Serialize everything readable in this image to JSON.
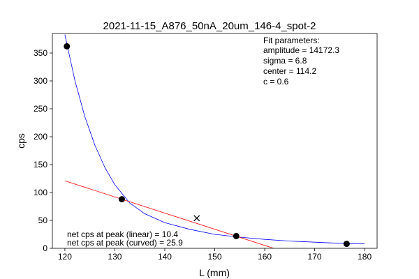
{
  "chart_data": {
    "type": "scatter",
    "title": "2021-11-15_A876_50nA_20um_146-4_spot-2",
    "xlabel": "L (mm)",
    "ylabel": "cps",
    "xlim": [
      117.5,
      182.5
    ],
    "ylim": [
      0,
      385
    ],
    "xticks": [
      120,
      130,
      140,
      150,
      160,
      170,
      180
    ],
    "yticks": [
      0,
      50,
      100,
      150,
      200,
      250,
      300,
      350
    ],
    "grid": false,
    "points": [
      {
        "x": 120.4,
        "y": 362
      },
      {
        "x": 131.4,
        "y": 88
      },
      {
        "x": 154.3,
        "y": 22
      },
      {
        "x": 176.4,
        "y": 8
      }
    ],
    "peak_marker": {
      "x": 146.4,
      "y": 54
    },
    "linear_fit": {
      "x": [
        120.0,
        161.8
      ],
      "y": [
        121,
        0
      ]
    },
    "curved_fit": {
      "x": [
        120.0,
        122.0,
        124.0,
        126.0,
        128.0,
        130.0,
        133.0,
        136.0,
        140.0,
        145.0,
        150.0,
        155.0,
        160.0,
        165.0,
        170.0,
        175.0,
        180.0
      ],
      "y": [
        383,
        301,
        236,
        185,
        145,
        114,
        81,
        62,
        46,
        34,
        25,
        20,
        16,
        13,
        11,
        9,
        8
      ]
    },
    "colors": {
      "points": "#000000",
      "linear_fit": "#ff0000",
      "curved_fit": "#0000ff"
    },
    "fit_parameters": {
      "heading": "Fit parameters:",
      "lines": [
        "amplitude = 14172.3",
        "sigma = 6.8",
        "center = 114.2",
        "c = 0.6"
      ]
    },
    "net_cps": [
      "net cps at peak (linear) = 10.4",
      "net cps at peak (curved) = 25.9"
    ]
  }
}
